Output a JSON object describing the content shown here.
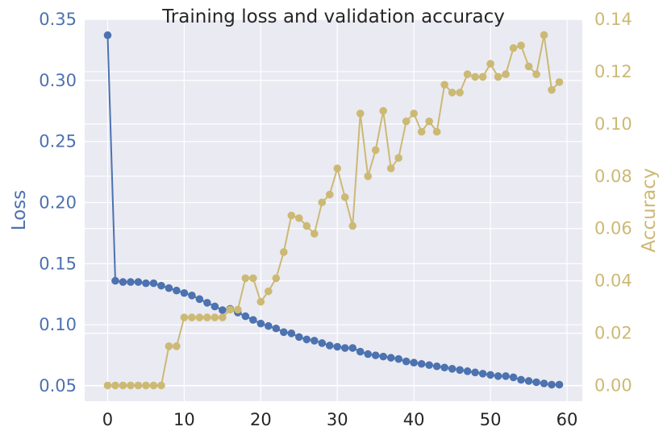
{
  "chart_data": {
    "type": "line",
    "title": "Training loss and validation accuracy",
    "xlabel": "",
    "ylabel": "Loss",
    "ylabel_right": "Accuracy",
    "xlim": [
      -3,
      62
    ],
    "ylim": [
      0.0375,
      0.35
    ],
    "ylim_right": [
      -0.006,
      0.14
    ],
    "x_ticks": [
      0,
      10,
      20,
      30,
      40,
      50,
      60
    ],
    "x_tick_labels": [
      "0",
      "10",
      "20",
      "30",
      "40",
      "50",
      "60"
    ],
    "y_ticks": [
      0.05,
      0.1,
      0.15,
      0.2,
      0.25,
      0.3,
      0.35
    ],
    "y_tick_labels": [
      "0.05",
      "0.10",
      "0.15",
      "0.20",
      "0.25",
      "0.30",
      "0.35"
    ],
    "y_ticks_right": [
      0.0,
      0.02,
      0.04,
      0.06,
      0.08,
      0.1,
      0.12,
      0.14
    ],
    "y_tick_labels_right": [
      "0.00",
      "0.02",
      "0.04",
      "0.06",
      "0.08",
      "0.10",
      "0.12",
      "0.14"
    ],
    "grid": true,
    "legend": "none",
    "colors": {
      "background": "#eaeaf2",
      "loss": "#4c72b0",
      "accuracy": "#ccb974",
      "text": "#262626"
    },
    "series": [
      {
        "axis": "left",
        "color": "#4c72b0",
        "x": [
          0,
          1,
          2,
          3,
          4,
          5,
          6,
          7,
          8,
          9,
          10,
          11,
          12,
          13,
          14,
          15,
          16,
          17,
          18,
          19,
          20,
          21,
          22,
          23,
          24,
          25,
          26,
          27,
          28,
          29,
          30,
          31,
          32,
          33,
          34,
          35,
          36,
          37,
          38,
          39,
          40,
          41,
          42,
          43,
          44,
          45,
          46,
          47,
          48,
          49,
          50,
          51,
          52,
          53,
          54,
          55,
          56,
          57,
          58,
          59
        ],
        "values": [
          0.337,
          0.136,
          0.135,
          0.135,
          0.135,
          0.134,
          0.134,
          0.132,
          0.13,
          0.128,
          0.126,
          0.124,
          0.121,
          0.118,
          0.115,
          0.112,
          0.113,
          0.11,
          0.107,
          0.104,
          0.101,
          0.099,
          0.097,
          0.094,
          0.093,
          0.09,
          0.088,
          0.087,
          0.085,
          0.083,
          0.082,
          0.081,
          0.081,
          0.078,
          0.076,
          0.075,
          0.074,
          0.073,
          0.072,
          0.07,
          0.069,
          0.068,
          0.067,
          0.066,
          0.065,
          0.064,
          0.063,
          0.062,
          0.061,
          0.06,
          0.059,
          0.058,
          0.058,
          0.057,
          0.055,
          0.054,
          0.053,
          0.052,
          0.051,
          0.051
        ]
      },
      {
        "axis": "right",
        "color": "#ccb974",
        "x": [
          0,
          1,
          2,
          3,
          4,
          5,
          6,
          7,
          8,
          9,
          10,
          11,
          12,
          13,
          14,
          15,
          16,
          17,
          18,
          19,
          20,
          21,
          22,
          23,
          24,
          25,
          26,
          27,
          28,
          29,
          30,
          31,
          32,
          33,
          34,
          35,
          36,
          37,
          38,
          39,
          40,
          41,
          42,
          43,
          44,
          45,
          46,
          47,
          48,
          49,
          50,
          51,
          52,
          53,
          54,
          55,
          56,
          57,
          58,
          59
        ],
        "values": [
          0.0,
          0.0,
          0.0,
          0.0,
          0.0,
          0.0,
          0.0,
          0.0,
          0.015,
          0.015,
          0.026,
          0.026,
          0.026,
          0.026,
          0.026,
          0.026,
          0.029,
          0.029,
          0.041,
          0.041,
          0.032,
          0.036,
          0.041,
          0.051,
          0.065,
          0.064,
          0.061,
          0.058,
          0.07,
          0.073,
          0.083,
          0.072,
          0.061,
          0.104,
          0.08,
          0.09,
          0.105,
          0.083,
          0.087,
          0.101,
          0.104,
          0.097,
          0.101,
          0.097,
          0.115,
          0.112,
          0.112,
          0.119,
          0.118,
          0.118,
          0.123,
          0.118,
          0.119,
          0.129,
          0.13,
          0.122,
          0.119,
          0.134,
          0.113,
          0.116
        ]
      }
    ]
  }
}
